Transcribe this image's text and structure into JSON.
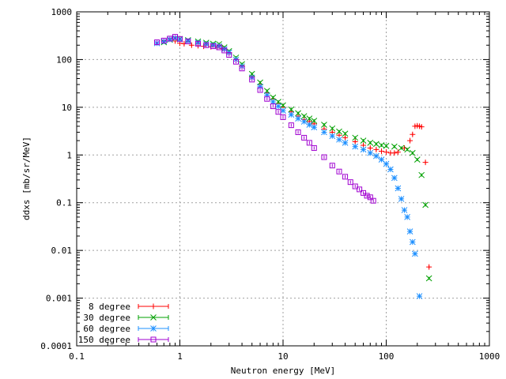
{
  "chart_data": {
    "type": "scatter",
    "title": "",
    "xlabel": "Neutron energy [MeV]",
    "ylabel": "ddxs [mb/sr/MeV]",
    "xscale": "log",
    "yscale": "log",
    "xlim": [
      0.1,
      1000
    ],
    "ylim": [
      0.0001,
      1000
    ],
    "grid": true,
    "legend_position": "bottom-left",
    "x_tick_labels": [
      "0.1",
      "1",
      "10",
      "100",
      "1000"
    ],
    "y_tick_labels": [
      "0.0001",
      "0.001",
      "0.01",
      "0.1",
      "1",
      "10",
      "100",
      "1000"
    ],
    "series": [
      {
        "name": "8 degree",
        "color": "#ff0000",
        "marker": "plus",
        "points": [
          [
            0.9,
            245
          ],
          [
            1.0,
            220
          ],
          [
            1.1,
            215
          ],
          [
            1.3,
            200
          ],
          [
            1.5,
            195
          ],
          [
            1.7,
            190
          ],
          [
            2.0,
            185
          ],
          [
            2.3,
            180
          ],
          [
            2.6,
            170
          ],
          [
            3.0,
            140
          ],
          [
            3.5,
            100
          ],
          [
            4.0,
            75
          ],
          [
            5.0,
            45
          ],
          [
            6.0,
            30
          ],
          [
            7.0,
            20
          ],
          [
            8.0,
            15
          ],
          [
            9.0,
            12
          ],
          [
            10.0,
            10
          ],
          [
            12.0,
            8
          ],
          [
            14.0,
            6.5
          ],
          [
            16.0,
            5.5
          ],
          [
            18.0,
            5.0
          ],
          [
            20.0,
            4.5
          ],
          [
            25.0,
            3.5
          ],
          [
            30.0,
            3.0
          ],
          [
            35.0,
            2.6
          ],
          [
            40.0,
            2.3
          ],
          [
            50.0,
            1.9
          ],
          [
            60.0,
            1.6
          ],
          [
            70.0,
            1.4
          ],
          [
            80.0,
            1.3
          ],
          [
            90.0,
            1.2
          ],
          [
            100.0,
            1.15
          ],
          [
            110.0,
            1.1
          ],
          [
            120.0,
            1.1
          ],
          [
            130.0,
            1.15
          ],
          [
            150.0,
            1.4
          ],
          [
            170.0,
            2.0
          ],
          [
            180.0,
            2.7
          ],
          [
            190.0,
            4.0
          ],
          [
            200.0,
            4.1
          ],
          [
            210.0,
            4.0
          ],
          [
            220.0,
            3.9
          ],
          [
            240.0,
            0.7
          ],
          [
            260.0,
            0.0045
          ]
        ]
      },
      {
        "name": "30 degree",
        "color": "#00a000",
        "marker": "x",
        "points": [
          [
            0.7,
            230
          ],
          [
            0.8,
            260
          ],
          [
            0.9,
            280
          ],
          [
            1.0,
            270
          ],
          [
            1.2,
            255
          ],
          [
            1.5,
            240
          ],
          [
            1.8,
            225
          ],
          [
            2.1,
            215
          ],
          [
            2.4,
            210
          ],
          [
            2.7,
            180
          ],
          [
            3.0,
            150
          ],
          [
            3.5,
            110
          ],
          [
            4.0,
            80
          ],
          [
            5.0,
            50
          ],
          [
            6.0,
            33
          ],
          [
            7.0,
            22
          ],
          [
            8.0,
            16
          ],
          [
            9.0,
            13
          ],
          [
            10.0,
            11
          ],
          [
            12.0,
            9
          ],
          [
            14.0,
            7.5
          ],
          [
            16.0,
            6.5
          ],
          [
            18.0,
            5.8
          ],
          [
            20.0,
            5.2
          ],
          [
            25.0,
            4.3
          ],
          [
            30.0,
            3.6
          ],
          [
            35.0,
            3.1
          ],
          [
            40.0,
            2.8
          ],
          [
            50.0,
            2.3
          ],
          [
            60.0,
            2.0
          ],
          [
            70.0,
            1.8
          ],
          [
            80.0,
            1.7
          ],
          [
            90.0,
            1.6
          ],
          [
            100.0,
            1.55
          ],
          [
            120.0,
            1.5
          ],
          [
            140.0,
            1.4
          ],
          [
            160.0,
            1.3
          ],
          [
            180.0,
            1.1
          ],
          [
            200.0,
            0.8
          ],
          [
            220.0,
            0.38
          ],
          [
            240.0,
            0.09
          ],
          [
            260.0,
            0.0026
          ]
        ]
      },
      {
        "name": "60 degree",
        "color": "#1e90ff",
        "marker": "star",
        "points": [
          [
            0.6,
            220
          ],
          [
            0.7,
            240
          ],
          [
            0.8,
            265
          ],
          [
            0.9,
            285
          ],
          [
            1.0,
            265
          ],
          [
            1.2,
            245
          ],
          [
            1.5,
            225
          ],
          [
            1.8,
            210
          ],
          [
            2.1,
            200
          ],
          [
            2.4,
            190
          ],
          [
            2.7,
            165
          ],
          [
            3.0,
            140
          ],
          [
            3.5,
            100
          ],
          [
            4.0,
            72
          ],
          [
            5.0,
            42
          ],
          [
            6.0,
            27
          ],
          [
            7.0,
            18
          ],
          [
            8.0,
            13
          ],
          [
            9.0,
            10.5
          ],
          [
            10.0,
            8.5
          ],
          [
            12.0,
            7.0
          ],
          [
            14.0,
            5.8
          ],
          [
            16.0,
            5.0
          ],
          [
            18.0,
            4.3
          ],
          [
            20.0,
            3.8
          ],
          [
            25.0,
            3.0
          ],
          [
            30.0,
            2.5
          ],
          [
            35.0,
            2.1
          ],
          [
            40.0,
            1.8
          ],
          [
            50.0,
            1.5
          ],
          [
            60.0,
            1.3
          ],
          [
            70.0,
            1.1
          ],
          [
            80.0,
            0.95
          ],
          [
            90.0,
            0.8
          ],
          [
            100.0,
            0.65
          ],
          [
            110.0,
            0.5
          ],
          [
            120.0,
            0.33
          ],
          [
            130.0,
            0.2
          ],
          [
            140.0,
            0.12
          ],
          [
            150.0,
            0.07
          ],
          [
            160.0,
            0.05
          ],
          [
            170.0,
            0.025
          ],
          [
            180.0,
            0.015
          ],
          [
            190.0,
            0.0085
          ],
          [
            210.0,
            0.0011
          ]
        ]
      },
      {
        "name": "150 degree",
        "color": "#a000d0",
        "marker": "square",
        "points": [
          [
            0.6,
            230
          ],
          [
            0.7,
            250
          ],
          [
            0.8,
            275
          ],
          [
            0.9,
            300
          ],
          [
            1.0,
            270
          ],
          [
            1.2,
            240
          ],
          [
            1.5,
            215
          ],
          [
            1.8,
            200
          ],
          [
            2.1,
            190
          ],
          [
            2.4,
            180
          ],
          [
            2.7,
            155
          ],
          [
            3.0,
            125
          ],
          [
            3.5,
            90
          ],
          [
            4.0,
            65
          ],
          [
            5.0,
            38
          ],
          [
            6.0,
            23
          ],
          [
            7.0,
            15
          ],
          [
            8.0,
            10.5
          ],
          [
            9.0,
            8.0
          ],
          [
            10.0,
            6.2
          ],
          [
            12.0,
            4.2
          ],
          [
            14.0,
            3.0
          ],
          [
            16.0,
            2.3
          ],
          [
            18.0,
            1.8
          ],
          [
            20.0,
            1.4
          ],
          [
            25.0,
            0.9
          ],
          [
            30.0,
            0.6
          ],
          [
            35.0,
            0.45
          ],
          [
            40.0,
            0.35
          ],
          [
            45.0,
            0.27
          ],
          [
            50.0,
            0.22
          ],
          [
            55.0,
            0.19
          ],
          [
            60.0,
            0.16
          ],
          [
            65.0,
            0.14
          ],
          [
            70.0,
            0.13
          ],
          [
            75.0,
            0.11
          ]
        ]
      }
    ]
  }
}
